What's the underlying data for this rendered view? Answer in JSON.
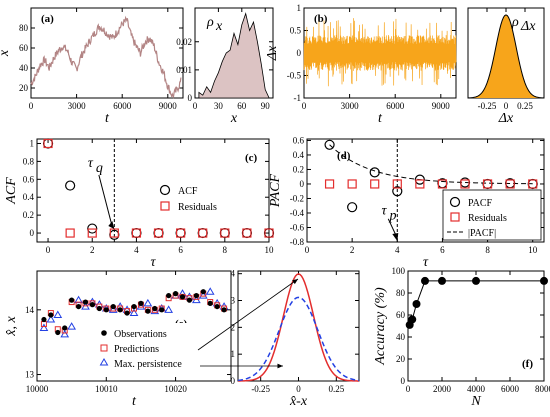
{
  "chart_data": [
    {
      "panel": "(a)",
      "type": "line",
      "xlabel": "t",
      "ylabel": "x",
      "xlim": [
        0,
        10000
      ],
      "ylim": [
        10,
        100
      ],
      "xticks": [
        0,
        3000,
        6000,
        9000
      ],
      "yticks": [
        20,
        40,
        60,
        80
      ],
      "series": [
        {
          "x": [
            0,
            300,
            600,
            900,
            1200,
            1500,
            1800,
            2100,
            2400,
            2700,
            3000,
            3300,
            3600,
            3900,
            4200,
            4500,
            4800,
            5100,
            5400,
            5700,
            6000,
            6300,
            6600,
            6900,
            7200,
            7500,
            7800,
            8100,
            8400,
            8700,
            9000,
            9300,
            9600,
            9900
          ],
          "values": [
            24,
            32,
            43,
            48,
            40,
            50,
            57,
            62,
            57,
            45,
            39,
            52,
            60,
            68,
            75,
            82,
            78,
            73,
            70,
            77,
            84,
            88,
            72,
            62,
            55,
            66,
            70,
            62,
            46,
            36,
            22,
            12,
            18,
            28
          ]
        }
      ],
      "color": "#b38585"
    },
    {
      "panel": "ρx",
      "type": "area",
      "xlabel": "x",
      "xlim": [
        0,
        100
      ],
      "ylim": [
        0,
        0.032
      ],
      "xticks": [
        0,
        30,
        60,
        90
      ],
      "yticks": [
        0,
        0.01,
        0.02
      ],
      "x": [
        5,
        10,
        15,
        20,
        25,
        30,
        35,
        40,
        45,
        50,
        55,
        60,
        65,
        70,
        75,
        80,
        85,
        90,
        95
      ],
      "values": [
        0.002,
        0.001,
        0.004,
        0.002,
        0.006,
        0.009,
        0.013,
        0.016,
        0.017,
        0.023,
        0.019,
        0.026,
        0.03,
        0.024,
        0.027,
        0.02,
        0.012,
        0.003,
        0.0
      ],
      "fill": "#dcc3c3"
    },
    {
      "panel": "(b)",
      "type": "line",
      "xlabel": "t",
      "ylabel": "Δx",
      "xlim": [
        0,
        10000
      ],
      "ylim": [
        -1,
        1
      ],
      "xticks": [
        0,
        3000,
        6000,
        9000
      ],
      "yticks": [
        -1,
        -0.5,
        0,
        0.5,
        1
      ],
      "band": [
        -0.75,
        0.8
      ],
      "core": [
        -0.4,
        0.4
      ],
      "color": "#f7a51b"
    },
    {
      "panel": "ρΔx",
      "type": "area",
      "xlabel": "Δx",
      "xlim": [
        -0.5,
        0.5
      ],
      "ylim": [
        0,
        3.2
      ],
      "xticks": [
        -0.25,
        0,
        0.25
      ],
      "mean": 0,
      "sd": 0.135,
      "fill": "#f7a51b"
    },
    {
      "panel": "(c)",
      "type": "scatter",
      "xlabel": "τ",
      "ylabel": "ACF",
      "xlim": [
        -0.5,
        10
      ],
      "ylim": [
        -0.1,
        1.05
      ],
      "xticks": [
        0,
        2,
        4,
        6,
        8,
        10
      ],
      "yticks": [
        0,
        0.2,
        0.4,
        0.6,
        0.8,
        1
      ],
      "series": [
        {
          "name": "ACF",
          "x": [
            0,
            1,
            2,
            3,
            4,
            5,
            6,
            7,
            8,
            9,
            10
          ],
          "values": [
            1.0,
            0.53,
            0.05,
            -0.02,
            0,
            0,
            0,
            0,
            0,
            0,
            0
          ]
        },
        {
          "name": "Residuals",
          "x": [
            0,
            1,
            2,
            3,
            4,
            5,
            6,
            7,
            8,
            9,
            10
          ],
          "values": [
            1.0,
            0,
            0,
            0,
            0,
            0,
            0,
            0,
            0,
            0,
            0
          ]
        }
      ],
      "vline": 3,
      "annotation": {
        "label": "τ",
        "sub": "q"
      }
    },
    {
      "panel": "(d)",
      "type": "scatter",
      "xlabel": "τ",
      "ylabel": "PACF",
      "xlim": [
        0,
        10.5
      ],
      "ylim": [
        -0.8,
        0.62
      ],
      "xticks": [
        0,
        2,
        4,
        6,
        8,
        10
      ],
      "yticks": [
        -0.8,
        -0.6,
        -0.4,
        -0.2,
        0,
        0.2,
        0.4,
        0.6
      ],
      "series": [
        {
          "name": "PACF",
          "x": [
            1,
            2,
            3,
            4,
            5,
            6,
            7,
            8,
            9,
            10
          ],
          "values": [
            0.54,
            -0.32,
            0.16,
            -0.1,
            0.06,
            0.01,
            0.02,
            0.0,
            0.01,
            0.0
          ]
        },
        {
          "name": "Residuals",
          "x": [
            1,
            2,
            3,
            4,
            5,
            6,
            7,
            8,
            9,
            10
          ],
          "values": [
            0,
            0,
            0,
            0,
            0,
            0,
            0,
            0,
            0,
            0
          ]
        },
        {
          "name": "|PACF|",
          "x": [
            1,
            2,
            3,
            4,
            5,
            6,
            7,
            8,
            9,
            10
          ],
          "values": [
            0.54,
            0.31,
            0.18,
            0.1,
            0.06,
            0.035,
            0.02,
            0.012,
            0.007,
            0.004
          ]
        }
      ],
      "vline": 4,
      "annotation": {
        "label": "τ",
        "sub": "p"
      }
    },
    {
      "panel": "(e)",
      "type": "scatter",
      "xlabel": "t",
      "ylabel": "x̂, x",
      "xlim": [
        10000,
        10028
      ],
      "ylim": [
        12.9,
        14.6
      ],
      "xticks": [
        10000,
        10010,
        10020
      ],
      "yticks": [
        13,
        14
      ],
      "x": [
        10001,
        10002,
        10003,
        10004,
        10005,
        10006,
        10007,
        10008,
        10009,
        10010,
        10011,
        10012,
        10013,
        10014,
        10015,
        10016,
        10017,
        10018,
        10019,
        10020,
        10021,
        10022,
        10023,
        10024,
        10025,
        10026,
        10027
      ],
      "series": [
        {
          "name": "Observations",
          "values": [
            13.85,
            13.92,
            13.65,
            13.72,
            14.15,
            14.05,
            14.12,
            14.08,
            14.02,
            14.0,
            14.05,
            14.0,
            13.95,
            14.05,
            14.1,
            13.98,
            14.02,
            14.0,
            14.22,
            14.25,
            14.2,
            14.15,
            14.22,
            14.28,
            14.1,
            14.05,
            14.0
          ]
        },
        {
          "name": "Predictions",
          "values": [
            13.78,
            13.95,
            13.7,
            13.68,
            14.12,
            14.08,
            14.1,
            14.1,
            14.05,
            14.02,
            14.02,
            14.02,
            13.98,
            14.02,
            14.08,
            14.0,
            14.0,
            14.02,
            14.18,
            14.22,
            14.2,
            14.18,
            14.2,
            14.25,
            14.12,
            14.07,
            14.02
          ]
        },
        {
          "name": "Max. persistence",
          "values": [
            13.72,
            13.85,
            13.92,
            13.62,
            13.74,
            14.15,
            14.05,
            14.12,
            14.08,
            14.02,
            14.0,
            14.05,
            14.0,
            13.95,
            14.05,
            14.1,
            13.98,
            14.02,
            14.0,
            14.22,
            14.25,
            14.2,
            14.15,
            14.22,
            14.28,
            14.1,
            14.05
          ]
        }
      ]
    },
    {
      "panel": "residual-density",
      "type": "line",
      "xlabel": "x̂-x",
      "xlim": [
        -0.4,
        0.4
      ],
      "ylim": [
        0,
        4.1
      ],
      "xticks": [
        -0.25,
        0,
        0.25
      ],
      "yticks": [
        0,
        1,
        2,
        3,
        4
      ],
      "series": [
        {
          "mean": 0,
          "sd": 0.1,
          "color": "#e32d2d"
        },
        {
          "mean": 0,
          "sd": 0.128,
          "color": "#2340e3",
          "dashed": true
        }
      ]
    },
    {
      "panel": "(f)",
      "type": "line",
      "xlabel": "N",
      "ylabel": "Accuracy (%)",
      "xlim": [
        0,
        8000
      ],
      "ylim": [
        0,
        100
      ],
      "xticks": [
        0,
        2000,
        4000,
        6000,
        8000
      ],
      "yticks": [
        0,
        20,
        40,
        60,
        80,
        100
      ],
      "x": [
        100,
        250,
        500,
        1000,
        2000,
        4000,
        8000
      ],
      "values": [
        51,
        56,
        70,
        91,
        91,
        91,
        91
      ]
    }
  ]
}
